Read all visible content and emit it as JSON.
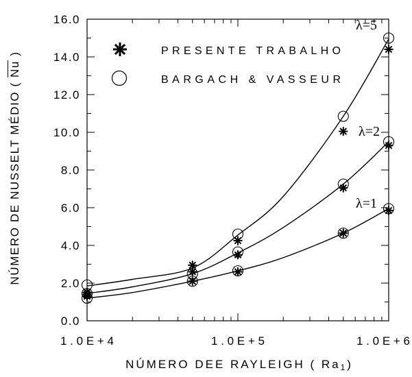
{
  "chart_data": {
    "type": "scatter",
    "xlabel": {
      "text": "NÚMERO DEE RAYLEIGH ( Ra",
      "subscript": "1",
      "suffix": ")"
    },
    "ylabel": {
      "text": "NÚMERO DE NUSSELT MÉDIO ( ",
      "symbol": "Nu",
      "suffix": " )"
    },
    "xscale": "log",
    "xlim": [
      10000,
      1000000
    ],
    "ylim": [
      0,
      16
    ],
    "xticks": [
      10000,
      100000,
      1000000
    ],
    "xtick_labels": [
      "1.0E+4",
      "1.0E+5",
      "1.0E+6"
    ],
    "yticks": [
      0,
      2,
      4,
      6,
      8,
      10,
      12,
      14,
      16
    ],
    "ytick_labels": [
      "0.0",
      "2.0",
      "4.0",
      "6.0",
      "8.0",
      "10.0",
      "12.0",
      "14.0",
      "16.0"
    ],
    "grid": false,
    "legend": "top-left",
    "series": [
      {
        "name": "PRESENTE TRABALHO",
        "marker": "star",
        "groups": [
          {
            "x": [
              10000,
              50000,
              100000,
              500000,
              1000000
            ],
            "y": [
              1.5,
              2.95,
              4.25,
              10.05,
              14.4
            ]
          },
          {
            "x": [
              10000,
              50000,
              100000,
              500000,
              1000000
            ],
            "y": [
              1.4,
              2.6,
              3.5,
              7.05,
              9.3
            ]
          },
          {
            "x": [
              10000,
              50000,
              100000,
              500000,
              1000000
            ],
            "y": [
              1.3,
              2.1,
              2.6,
              4.65,
              5.85
            ]
          }
        ]
      },
      {
        "name": "BARGACH & VASSEUR",
        "marker": "open-circle",
        "groups": [
          {
            "x": [
              10000,
              100000,
              500000,
              1000000
            ],
            "y": [
              1.9,
              4.6,
              10.85,
              15.0
            ]
          },
          {
            "x": [
              10000,
              50000,
              100000,
              500000,
              1000000
            ],
            "y": [
              1.45,
              2.5,
              3.65,
              7.25,
              9.5
            ]
          },
          {
            "x": [
              10000,
              50000,
              100000,
              500000,
              1000000
            ],
            "y": [
              1.2,
              2.1,
              2.65,
              4.65,
              5.95
            ]
          }
        ]
      }
    ],
    "fit_lines": [
      {
        "x": [
          10000,
          20000,
          50000,
          100000,
          200000,
          500000,
          1000000
        ],
        "y": [
          1.85,
          2.2,
          2.8,
          4.55,
          6.6,
          10.85,
          14.95
        ]
      },
      {
        "x": [
          10000,
          20000,
          50000,
          100000,
          200000,
          500000,
          1000000
        ],
        "y": [
          1.45,
          1.8,
          2.5,
          3.6,
          4.95,
          7.25,
          9.5
        ]
      },
      {
        "x": [
          10000,
          20000,
          50000,
          100000,
          200000,
          500000,
          1000000
        ],
        "y": [
          1.2,
          1.5,
          2.1,
          2.65,
          3.35,
          4.65,
          5.95
        ]
      }
    ],
    "annotations": [
      {
        "text": "λ=5"
      },
      {
        "text": "λ=2"
      },
      {
        "text": "λ=1"
      }
    ]
  }
}
